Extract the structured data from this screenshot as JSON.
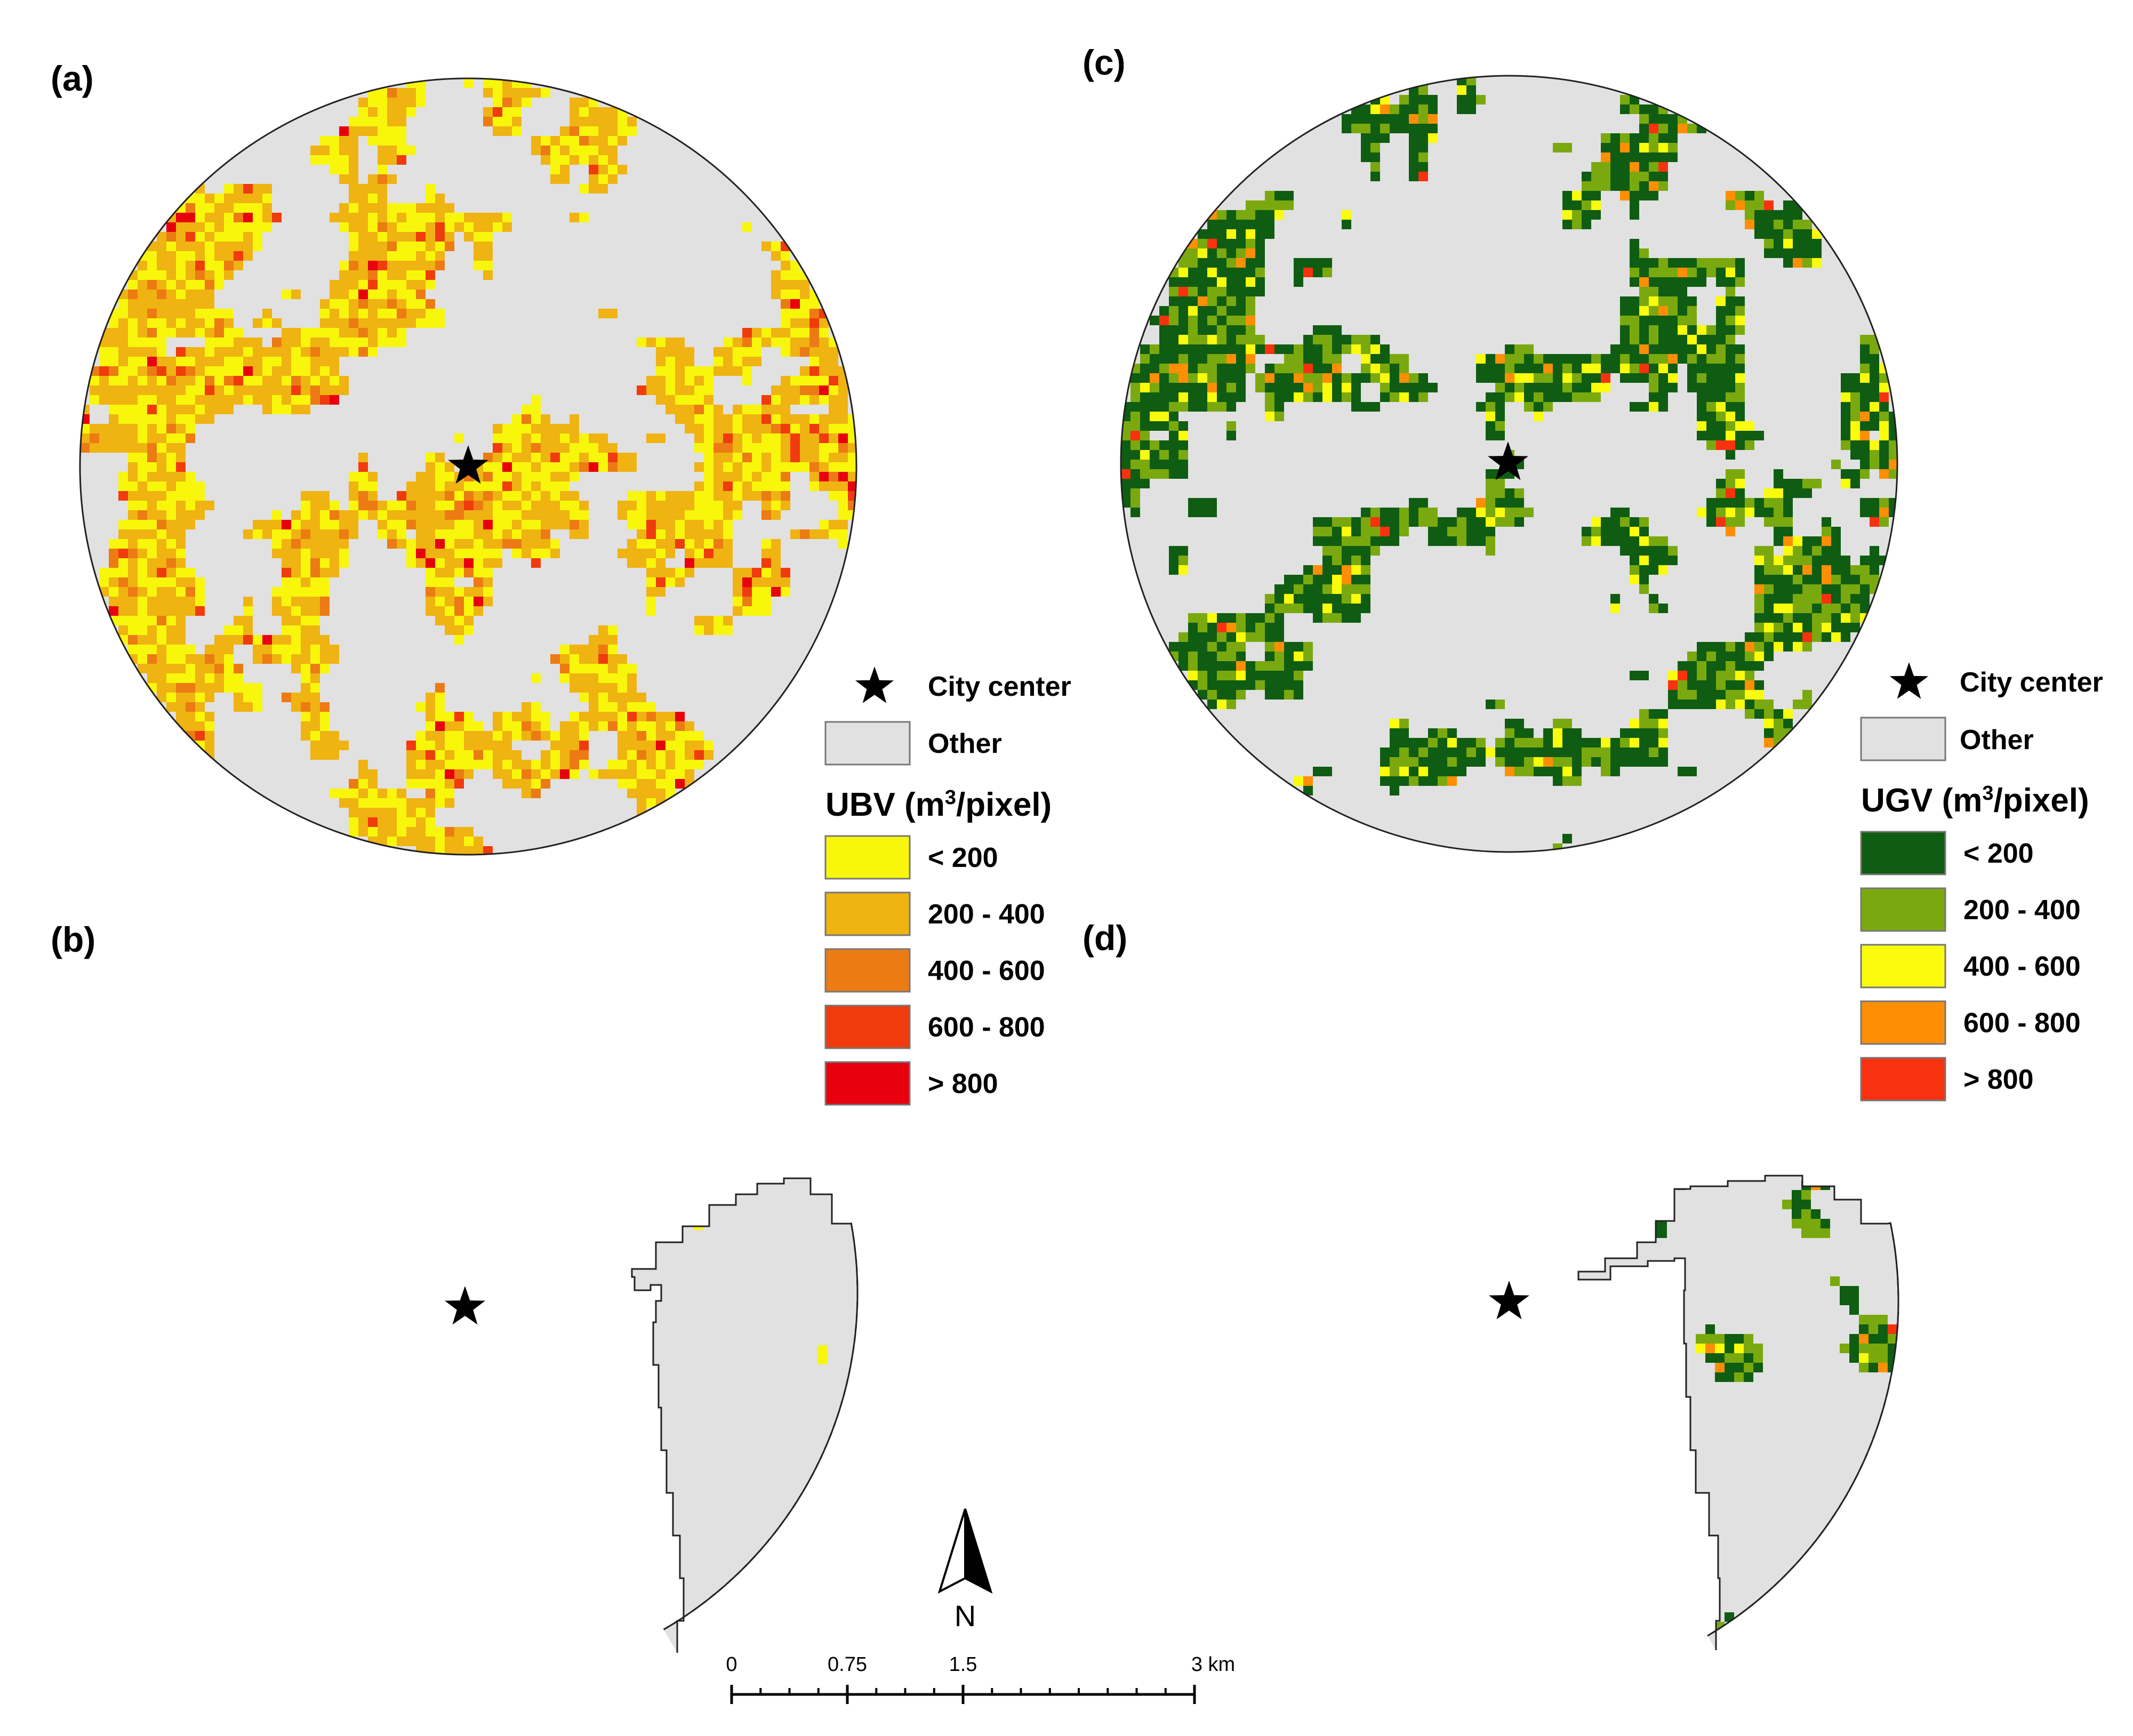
{
  "panels": [
    {
      "id": "a",
      "label": "(a)",
      "variable": "UBV",
      "clipped": false,
      "center_marker": "star-icon"
    },
    {
      "id": "b",
      "label": "(b)",
      "variable": "UBV",
      "clipped": true,
      "center_marker": "star-icon"
    },
    {
      "id": "c",
      "label": "(c)",
      "variable": "UGV",
      "clipped": false,
      "center_marker": "star-icon"
    },
    {
      "id": "d",
      "label": "(d)",
      "variable": "UGV",
      "clipped": true,
      "center_marker": "star-icon"
    }
  ],
  "legend_ubv": {
    "city_center": "City center",
    "other": "Other",
    "title_main": "UBV (m",
    "title_sup": "3",
    "title_rest": "/pixel)",
    "other_color": "#e1e1e1",
    "classes": [
      {
        "label": "< 200",
        "color": "#f8f70b"
      },
      {
        "label": "200 - 400",
        "color": "#efb312"
      },
      {
        "label": "400 - 600",
        "color": "#ec7b14"
      },
      {
        "label": "600 - 800",
        "color": "#f03b0c"
      },
      {
        "label": "> 800",
        "color": "#e8000e"
      }
    ]
  },
  "legend_ugv": {
    "city_center": "City center",
    "other": "Other",
    "title_main": "UGV (m",
    "title_sup": "3",
    "title_rest": "/pixel)",
    "other_color": "#e1e1e1",
    "classes": [
      {
        "label": "< 200",
        "color": "#0f5d12"
      },
      {
        "label": "200 - 400",
        "color": "#7aa90f"
      },
      {
        "label": "400 - 600",
        "color": "#fafb0d"
      },
      {
        "label": "600 - 800",
        "color": "#fd8f06"
      },
      {
        "label": "> 800",
        "color": "#f8320e"
      }
    ]
  },
  "north_arrow": {
    "label": "N",
    "icon": "north-arrow-icon"
  },
  "scale_bar": {
    "ticks": [
      "0",
      "0.75",
      "1.5",
      "3 km"
    ]
  }
}
